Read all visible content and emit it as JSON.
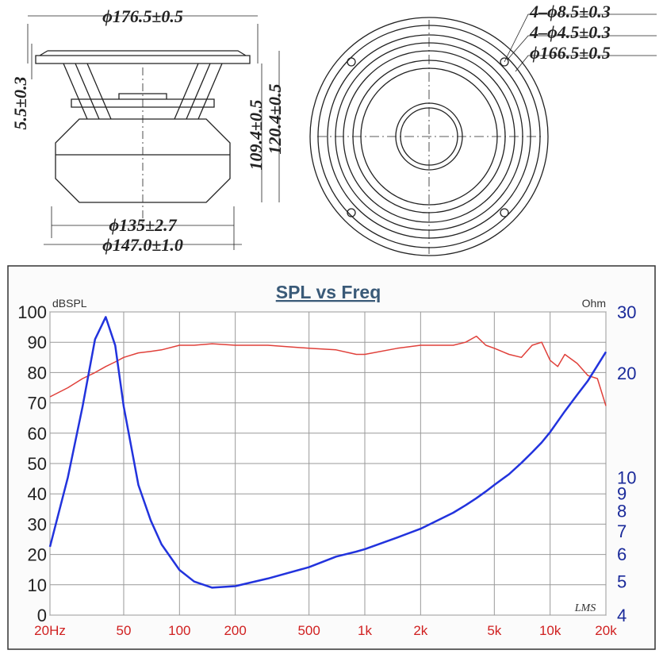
{
  "drawing": {
    "outer_diameter": "ϕ176.5±0.5",
    "flange_thickness": "5.5±0.3",
    "depth_inner": "109.4±0.5",
    "depth_total": "120.4±0.5",
    "magnet_diameter": "ϕ135±2.7",
    "basket_diameter": "ϕ147.0±1.0",
    "holes_outer": "4–ϕ8.5±0.3",
    "holes_inner": "4–ϕ4.5±0.3",
    "bolt_circle": "ϕ166.5±0.5"
  },
  "chart_data": {
    "type": "line",
    "title": "SPL vs Freq",
    "y_label": "dBSPL",
    "y2_label": "Ohm",
    "watermark": "LMS",
    "x": [
      20,
      25,
      30,
      35,
      40,
      45,
      50,
      60,
      70,
      80,
      100,
      120,
      150,
      200,
      300,
      500,
      700,
      900,
      1000,
      1500,
      2000,
      3000,
      3500,
      4000,
      4500,
      5000,
      6000,
      7000,
      8000,
      9000,
      10000,
      11000,
      12000,
      14000,
      16000,
      18000,
      20000
    ],
    "series": [
      {
        "color": "#e0403a",
        "values": [
          72,
          75,
          78,
          80,
          82,
          83.5,
          85,
          86.5,
          87,
          87.5,
          89,
          89,
          89.5,
          89,
          89,
          88,
          87.5,
          86,
          86,
          88,
          89,
          89,
          90,
          92,
          89,
          88,
          86,
          85,
          89,
          90,
          84,
          82,
          86,
          83,
          79,
          78,
          69
        ]
      },
      {
        "color": "#2233dd",
        "axis": "y2",
        "values": [
          6.3,
          10,
          16,
          25,
          29,
          24,
          16,
          9.5,
          7.5,
          6.4,
          5.4,
          5.0,
          4.8,
          4.85,
          5.1,
          5.5,
          5.9,
          6.1,
          6.2,
          6.7,
          7.1,
          7.9,
          8.3,
          8.7,
          9.1,
          9.5,
          10.2,
          11,
          11.8,
          12.6,
          13.5,
          14.5,
          15.5,
          17.3,
          19,
          21,
          23
        ]
      }
    ],
    "xlog": true,
    "xlim": [
      20,
      20000
    ],
    "xticks": [
      {
        "value": 20,
        "label": "20Hz"
      },
      50,
      100,
      200,
      500,
      {
        "value": 1000,
        "label": "1k"
      },
      {
        "value": 2000,
        "label": "2k"
      },
      {
        "value": 5000,
        "label": "5k"
      },
      {
        "value": 10000,
        "label": "10k"
      },
      {
        "value": 20000,
        "label": "20k"
      }
    ],
    "ylim": [
      0,
      100
    ],
    "yticks": [
      0,
      10,
      20,
      30,
      40,
      50,
      60,
      70,
      80,
      90,
      100
    ],
    "y2log": true,
    "y2lim": [
      4,
      30
    ],
    "y2ticks": [
      4,
      5,
      6,
      7,
      8,
      9,
      10,
      20,
      30
    ],
    "grid": true,
    "xtick_color": "#d02020",
    "y2tick_color": "#1a2a9a"
  }
}
